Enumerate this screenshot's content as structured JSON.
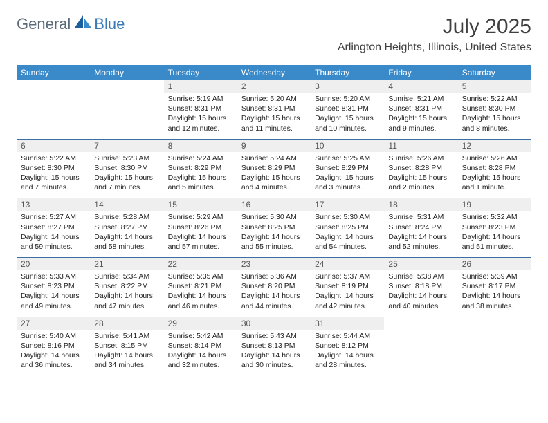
{
  "logo": {
    "part1": "General",
    "part2": "Blue"
  },
  "title": "July 2025",
  "location": "Arlington Heights, Illinois, United States",
  "colors": {
    "header_bg": "#3a89c9",
    "header_text": "#ffffff",
    "daynum_bg": "#efefef",
    "border": "#3a6fa5",
    "logo_gray": "#5a6a78",
    "logo_blue": "#3a7ab8"
  },
  "weekdays": [
    "Sunday",
    "Monday",
    "Tuesday",
    "Wednesday",
    "Thursday",
    "Friday",
    "Saturday"
  ],
  "weeks": [
    {
      "nums": [
        "",
        "",
        "1",
        "2",
        "3",
        "4",
        "5"
      ],
      "cells": [
        "",
        "",
        "Sunrise: 5:19 AM\nSunset: 8:31 PM\nDaylight: 15 hours and 12 minutes.",
        "Sunrise: 5:20 AM\nSunset: 8:31 PM\nDaylight: 15 hours and 11 minutes.",
        "Sunrise: 5:20 AM\nSunset: 8:31 PM\nDaylight: 15 hours and 10 minutes.",
        "Sunrise: 5:21 AM\nSunset: 8:31 PM\nDaylight: 15 hours and 9 minutes.",
        "Sunrise: 5:22 AM\nSunset: 8:30 PM\nDaylight: 15 hours and 8 minutes."
      ]
    },
    {
      "nums": [
        "6",
        "7",
        "8",
        "9",
        "10",
        "11",
        "12"
      ],
      "cells": [
        "Sunrise: 5:22 AM\nSunset: 8:30 PM\nDaylight: 15 hours and 7 minutes.",
        "Sunrise: 5:23 AM\nSunset: 8:30 PM\nDaylight: 15 hours and 7 minutes.",
        "Sunrise: 5:24 AM\nSunset: 8:29 PM\nDaylight: 15 hours and 5 minutes.",
        "Sunrise: 5:24 AM\nSunset: 8:29 PM\nDaylight: 15 hours and 4 minutes.",
        "Sunrise: 5:25 AM\nSunset: 8:29 PM\nDaylight: 15 hours and 3 minutes.",
        "Sunrise: 5:26 AM\nSunset: 8:28 PM\nDaylight: 15 hours and 2 minutes.",
        "Sunrise: 5:26 AM\nSunset: 8:28 PM\nDaylight: 15 hours and 1 minute."
      ]
    },
    {
      "nums": [
        "13",
        "14",
        "15",
        "16",
        "17",
        "18",
        "19"
      ],
      "cells": [
        "Sunrise: 5:27 AM\nSunset: 8:27 PM\nDaylight: 14 hours and 59 minutes.",
        "Sunrise: 5:28 AM\nSunset: 8:27 PM\nDaylight: 14 hours and 58 minutes.",
        "Sunrise: 5:29 AM\nSunset: 8:26 PM\nDaylight: 14 hours and 57 minutes.",
        "Sunrise: 5:30 AM\nSunset: 8:25 PM\nDaylight: 14 hours and 55 minutes.",
        "Sunrise: 5:30 AM\nSunset: 8:25 PM\nDaylight: 14 hours and 54 minutes.",
        "Sunrise: 5:31 AM\nSunset: 8:24 PM\nDaylight: 14 hours and 52 minutes.",
        "Sunrise: 5:32 AM\nSunset: 8:23 PM\nDaylight: 14 hours and 51 minutes."
      ]
    },
    {
      "nums": [
        "20",
        "21",
        "22",
        "23",
        "24",
        "25",
        "26"
      ],
      "cells": [
        "Sunrise: 5:33 AM\nSunset: 8:23 PM\nDaylight: 14 hours and 49 minutes.",
        "Sunrise: 5:34 AM\nSunset: 8:22 PM\nDaylight: 14 hours and 47 minutes.",
        "Sunrise: 5:35 AM\nSunset: 8:21 PM\nDaylight: 14 hours and 46 minutes.",
        "Sunrise: 5:36 AM\nSunset: 8:20 PM\nDaylight: 14 hours and 44 minutes.",
        "Sunrise: 5:37 AM\nSunset: 8:19 PM\nDaylight: 14 hours and 42 minutes.",
        "Sunrise: 5:38 AM\nSunset: 8:18 PM\nDaylight: 14 hours and 40 minutes.",
        "Sunrise: 5:39 AM\nSunset: 8:17 PM\nDaylight: 14 hours and 38 minutes."
      ]
    },
    {
      "nums": [
        "27",
        "28",
        "29",
        "30",
        "31",
        "",
        ""
      ],
      "cells": [
        "Sunrise: 5:40 AM\nSunset: 8:16 PM\nDaylight: 14 hours and 36 minutes.",
        "Sunrise: 5:41 AM\nSunset: 8:15 PM\nDaylight: 14 hours and 34 minutes.",
        "Sunrise: 5:42 AM\nSunset: 8:14 PM\nDaylight: 14 hours and 32 minutes.",
        "Sunrise: 5:43 AM\nSunset: 8:13 PM\nDaylight: 14 hours and 30 minutes.",
        "Sunrise: 5:44 AM\nSunset: 8:12 PM\nDaylight: 14 hours and 28 minutes.",
        "",
        ""
      ]
    }
  ]
}
